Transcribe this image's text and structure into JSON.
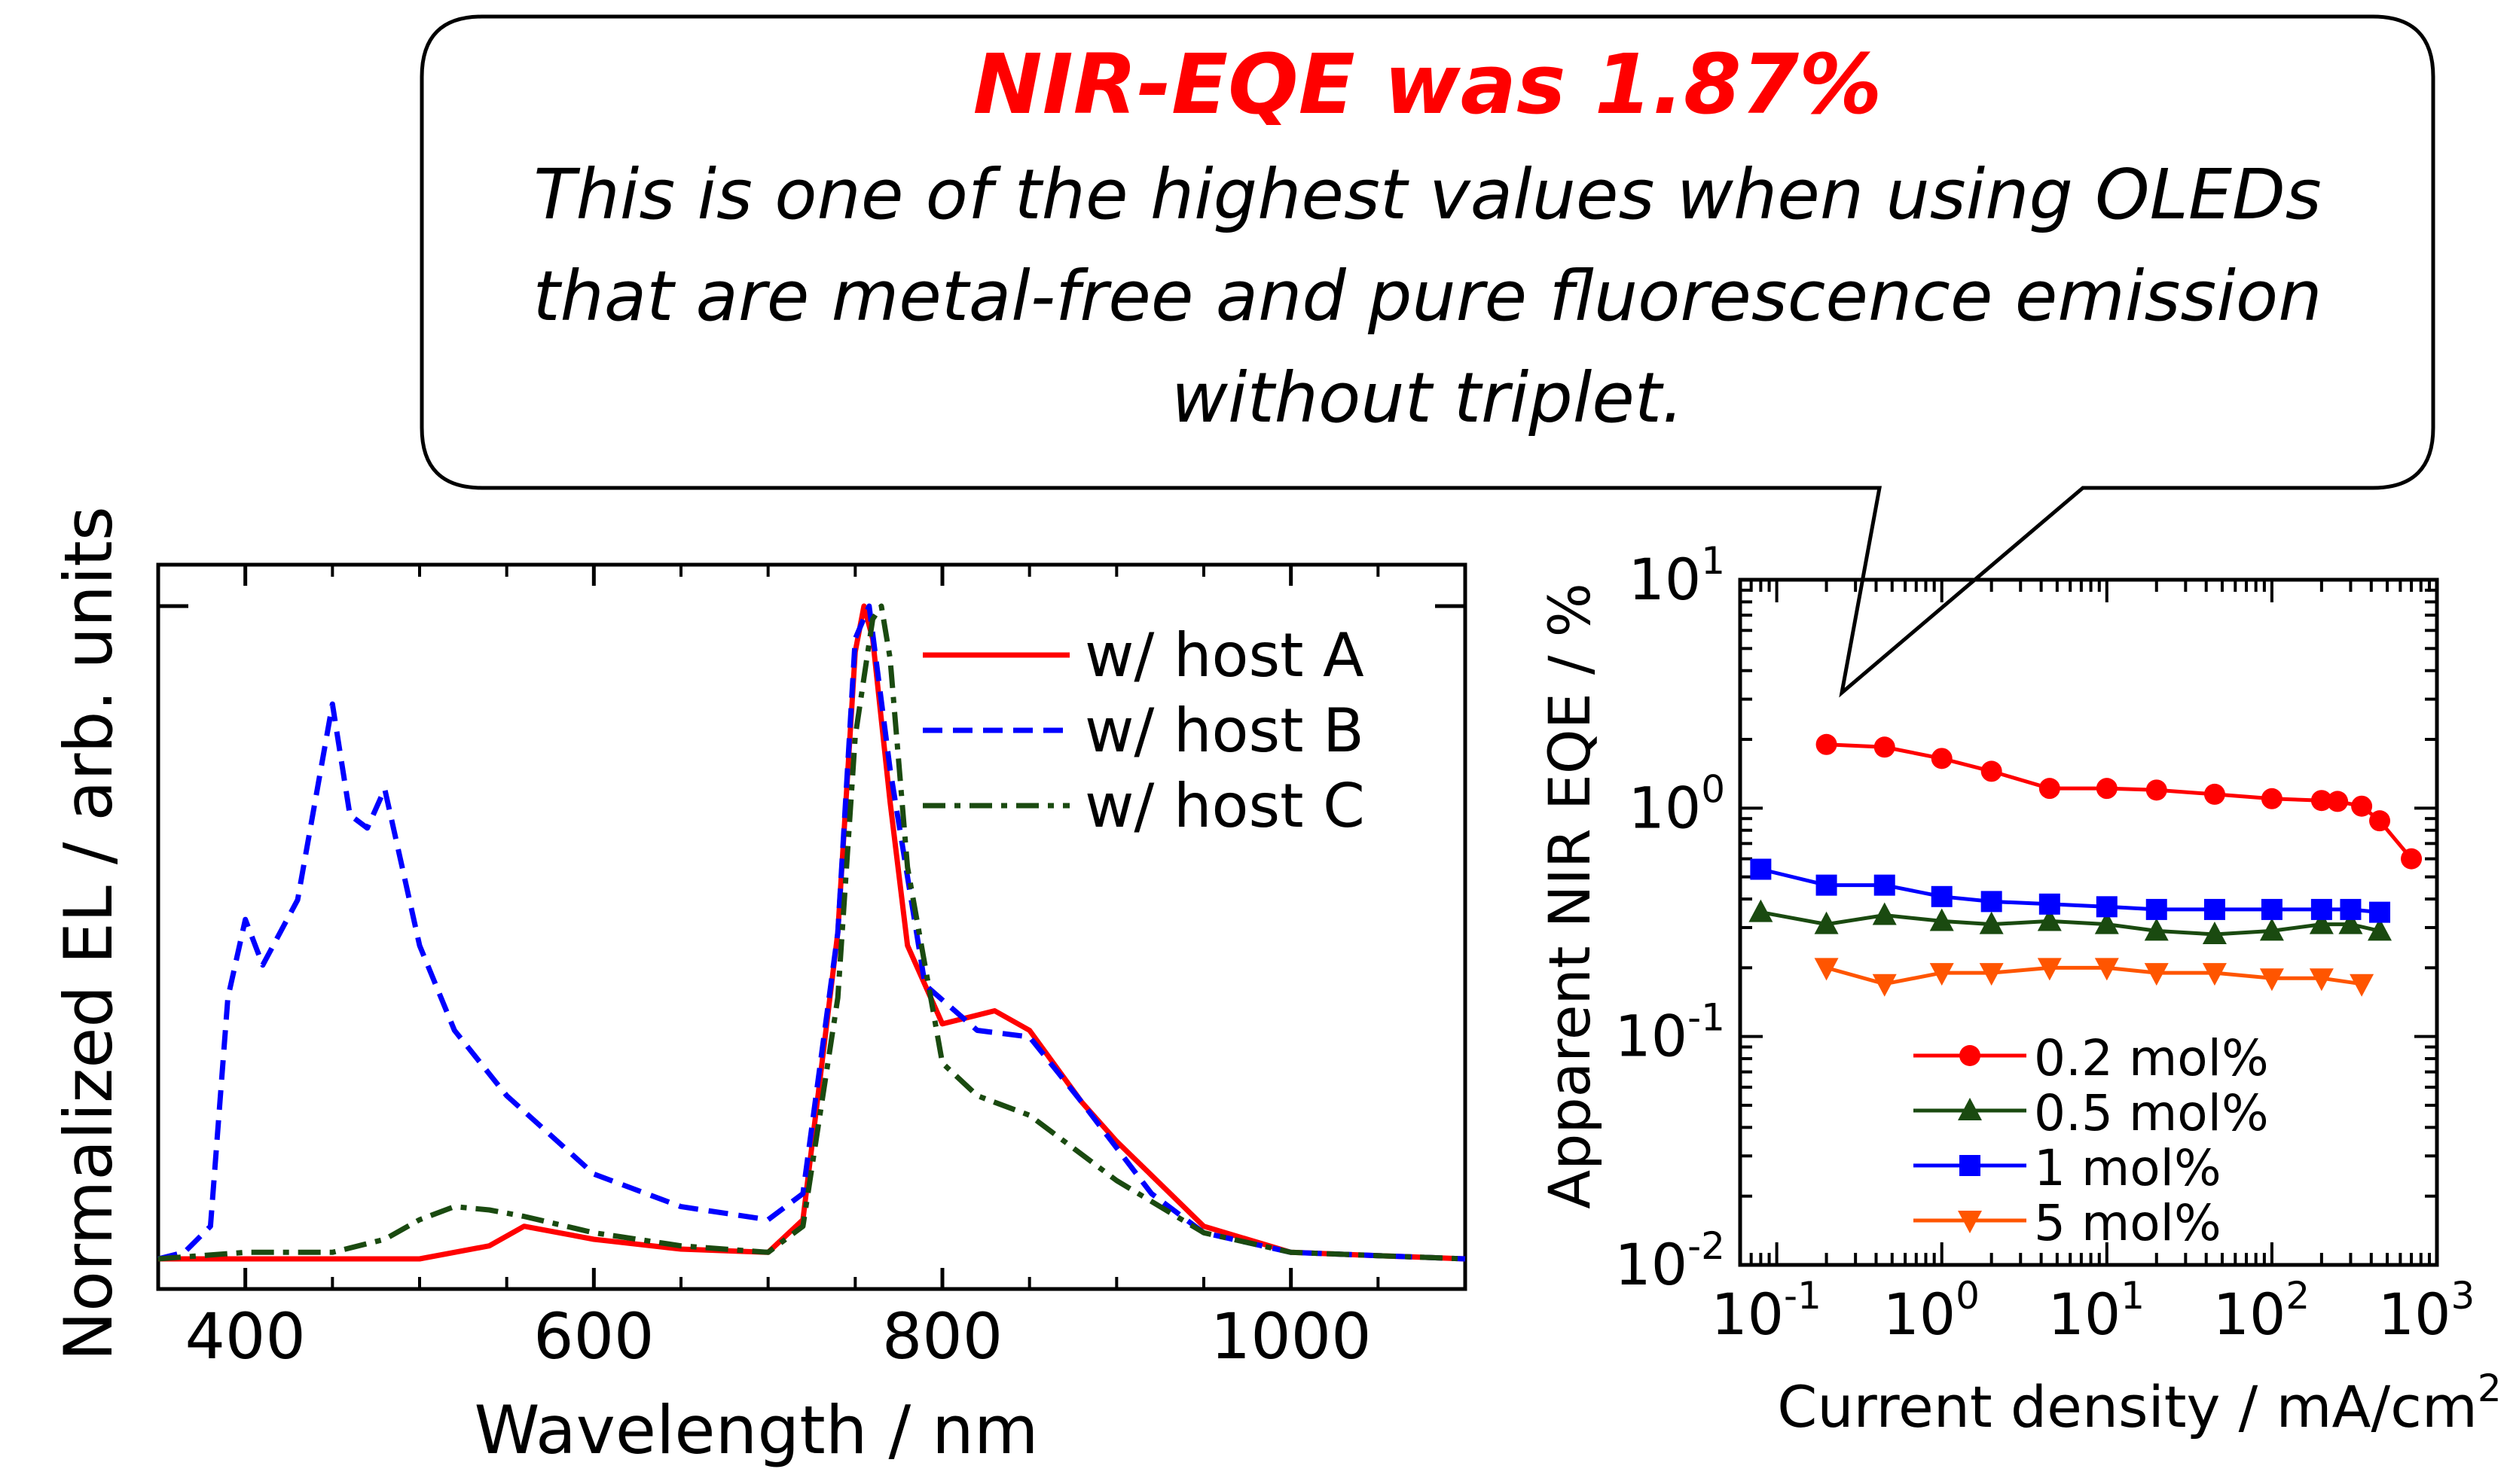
{
  "callout": {
    "headline": "NIR-EQE was 1.87%",
    "lines": [
      "This is one of the highest values when using OLEDs",
      "that are metal-free and pure fluorescence emission",
      "without triplet."
    ]
  },
  "chart_data": [
    {
      "type": "line",
      "xlabel": "Wavelength / nm",
      "ylabel": "Normalized EL / arb. units",
      "xlim": [
        350,
        1100
      ],
      "ylim": [
        0,
        1
      ],
      "xticks": [
        400,
        600,
        800,
        1000
      ],
      "legend_position": "top-right",
      "series": [
        {
          "name": "w/   host A",
          "color": "#ff0000",
          "dash": "solid",
          "x": [
            350,
            400,
            450,
            500,
            540,
            560,
            580,
            600,
            650,
            700,
            720,
            740,
            750,
            755,
            760,
            770,
            780,
            800,
            830,
            850,
            880,
            900,
            950,
            1000,
            1050,
            1100
          ],
          "y": [
            0,
            0,
            0,
            0,
            0.02,
            0.05,
            0.04,
            0.03,
            0.015,
            0.01,
            0.06,
            0.5,
            0.93,
            1.0,
            0.95,
            0.7,
            0.48,
            0.36,
            0.38,
            0.35,
            0.24,
            0.18,
            0.05,
            0.01,
            0.005,
            0.0
          ]
        },
        {
          "name": "w/   host B",
          "color": "#0000ff",
          "dash": "dashed",
          "x": [
            350,
            365,
            380,
            390,
            400,
            410,
            420,
            430,
            440,
            450,
            460,
            470,
            480,
            490,
            500,
            520,
            550,
            600,
            650,
            700,
            720,
            740,
            750,
            758,
            770,
            790,
            820,
            850,
            880,
            920,
            950,
            1000,
            1050,
            1100
          ],
          "y": [
            0,
            0.01,
            0.05,
            0.4,
            0.52,
            0.45,
            0.5,
            0.55,
            0.7,
            0.85,
            0.68,
            0.66,
            0.72,
            0.6,
            0.48,
            0.35,
            0.25,
            0.13,
            0.08,
            0.06,
            0.1,
            0.5,
            0.95,
            1.0,
            0.75,
            0.42,
            0.35,
            0.34,
            0.24,
            0.1,
            0.04,
            0.01,
            0.005,
            0.0
          ]
        },
        {
          "name": "w/   host C",
          "color": "#1a4a10",
          "dash": "dashdot",
          "x": [
            350,
            400,
            450,
            480,
            500,
            520,
            540,
            560,
            600,
            650,
            700,
            720,
            740,
            750,
            760,
            765,
            770,
            780,
            800,
            820,
            850,
            880,
            900,
            950,
            1000,
            1050,
            1100
          ],
          "y": [
            0,
            0.01,
            0.01,
            0.03,
            0.06,
            0.08,
            0.075,
            0.065,
            0.04,
            0.02,
            0.01,
            0.05,
            0.4,
            0.8,
            0.98,
            1.0,
            0.92,
            0.6,
            0.3,
            0.25,
            0.22,
            0.16,
            0.12,
            0.04,
            0.01,
            0.005,
            0.0
          ]
        }
      ]
    },
    {
      "type": "line",
      "xlabel": "Current density / mA/cm",
      "xlabel_sup": "2",
      "ylabel": "Apparent NIR EQE / %",
      "x_scale": "log",
      "y_scale": "log",
      "xlim": [
        0.06,
        1000
      ],
      "ylim": [
        0.01,
        10
      ],
      "xtick_labels": [
        {
          "base": "10",
          "exp": "-1"
        },
        {
          "base": "10",
          "exp": "0"
        },
        {
          "base": "10",
          "exp": "1"
        },
        {
          "base": "10",
          "exp": "2"
        },
        {
          "base": "10",
          "exp": "3"
        }
      ],
      "ytick_labels": [
        {
          "base": "10",
          "exp": "-2"
        },
        {
          "base": "10",
          "exp": "-1"
        },
        {
          "base": "10",
          "exp": "0"
        },
        {
          "base": "10",
          "exp": "1"
        }
      ],
      "legend_position": "bottom-left",
      "series": [
        {
          "name": "0.2 mol%",
          "color": "#ff0000",
          "marker": "circle",
          "x": [
            0.2,
            0.45,
            1,
            2,
            4.5,
            10,
            20,
            45,
            100,
            200,
            250,
            350,
            450,
            700
          ],
          "y": [
            1.9,
            1.85,
            1.65,
            1.45,
            1.22,
            1.22,
            1.2,
            1.15,
            1.1,
            1.08,
            1.07,
            1.02,
            0.88,
            0.6
          ]
        },
        {
          "name": "0.5 mol%",
          "color": "#1a4a10",
          "marker": "triangle-up",
          "x": [
            0.08,
            0.2,
            0.45,
            1,
            2,
            4.5,
            10,
            20,
            45,
            100,
            200,
            300,
            450
          ],
          "y": [
            0.35,
            0.31,
            0.34,
            0.32,
            0.31,
            0.32,
            0.31,
            0.29,
            0.28,
            0.29,
            0.31,
            0.31,
            0.29
          ]
        },
        {
          "name": "1 mol%",
          "color": "#0000ff",
          "marker": "square",
          "x": [
            0.08,
            0.2,
            0.45,
            1,
            2,
            4.5,
            10,
            20,
            45,
            100,
            200,
            300,
            450
          ],
          "y": [
            0.54,
            0.46,
            0.46,
            0.41,
            0.39,
            0.38,
            0.37,
            0.36,
            0.36,
            0.36,
            0.36,
            0.36,
            0.35
          ]
        },
        {
          "name": "5 mol%",
          "color": "#ff5500",
          "marker": "triangle-down",
          "x": [
            0.2,
            0.45,
            1,
            2,
            4.5,
            10,
            20,
            45,
            100,
            200,
            350
          ],
          "y": [
            0.2,
            0.17,
            0.19,
            0.19,
            0.2,
            0.2,
            0.19,
            0.19,
            0.18,
            0.18,
            0.17
          ]
        }
      ]
    }
  ]
}
